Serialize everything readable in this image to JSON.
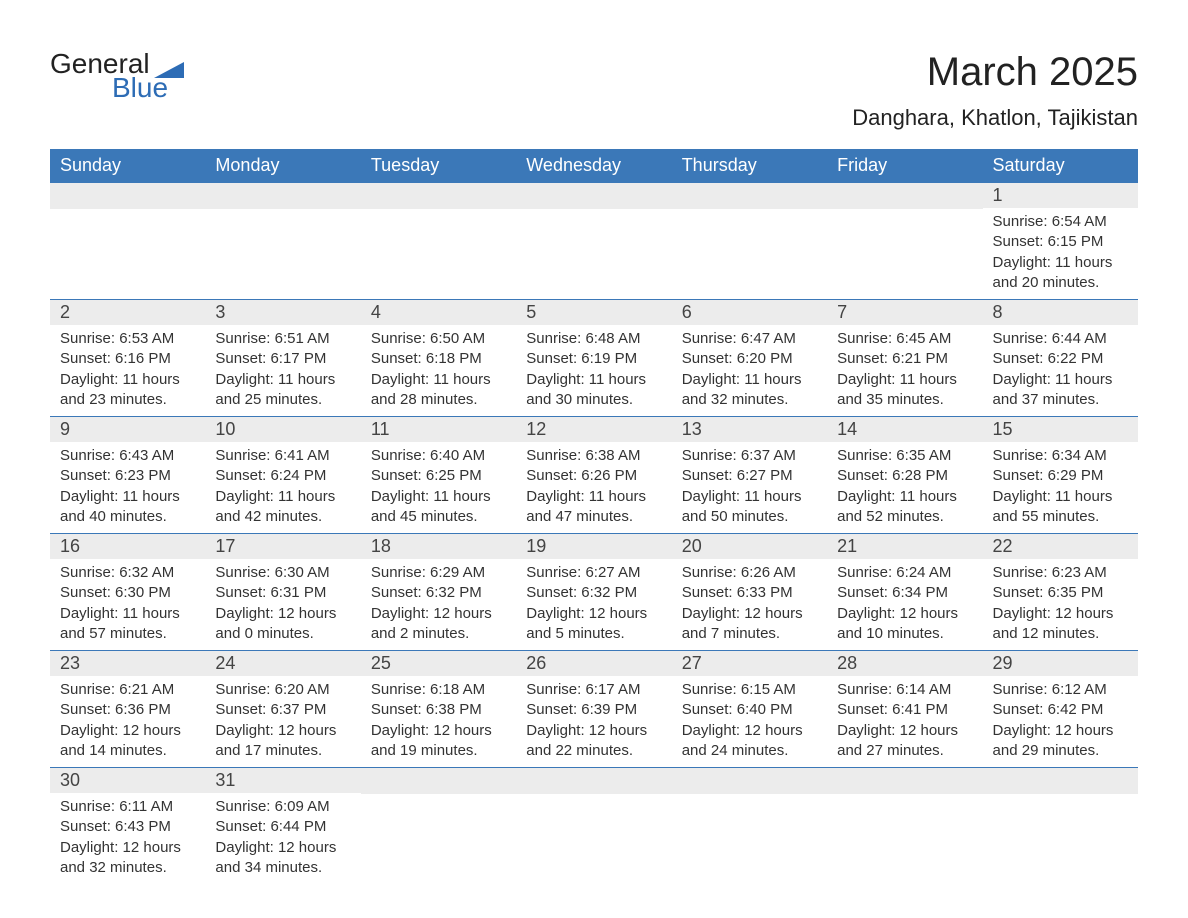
{
  "brand": {
    "text1": "General",
    "text2": "Blue",
    "accent": "#2d6cb5"
  },
  "title": "March 2025",
  "location": "Danghara, Khatlon, Tajikistan",
  "colors": {
    "header_bg": "#3b78b8",
    "header_text": "#ffffff",
    "daynum_bg": "#ececec",
    "row_border": "#3b78b8",
    "body_text": "#333333",
    "page_bg": "#ffffff"
  },
  "typography": {
    "title_pt": 40,
    "location_pt": 22,
    "header_pt": 18,
    "daynum_pt": 18,
    "body_pt": 15
  },
  "columns": [
    "Sunday",
    "Monday",
    "Tuesday",
    "Wednesday",
    "Thursday",
    "Friday",
    "Saturday"
  ],
  "weeks": [
    [
      null,
      null,
      null,
      null,
      null,
      null,
      {
        "n": "1",
        "sr": "Sunrise: 6:54 AM",
        "ss": "Sunset: 6:15 PM",
        "d1": "Daylight: 11 hours",
        "d2": "and 20 minutes."
      }
    ],
    [
      {
        "n": "2",
        "sr": "Sunrise: 6:53 AM",
        "ss": "Sunset: 6:16 PM",
        "d1": "Daylight: 11 hours",
        "d2": "and 23 minutes."
      },
      {
        "n": "3",
        "sr": "Sunrise: 6:51 AM",
        "ss": "Sunset: 6:17 PM",
        "d1": "Daylight: 11 hours",
        "d2": "and 25 minutes."
      },
      {
        "n": "4",
        "sr": "Sunrise: 6:50 AM",
        "ss": "Sunset: 6:18 PM",
        "d1": "Daylight: 11 hours",
        "d2": "and 28 minutes."
      },
      {
        "n": "5",
        "sr": "Sunrise: 6:48 AM",
        "ss": "Sunset: 6:19 PM",
        "d1": "Daylight: 11 hours",
        "d2": "and 30 minutes."
      },
      {
        "n": "6",
        "sr": "Sunrise: 6:47 AM",
        "ss": "Sunset: 6:20 PM",
        "d1": "Daylight: 11 hours",
        "d2": "and 32 minutes."
      },
      {
        "n": "7",
        "sr": "Sunrise: 6:45 AM",
        "ss": "Sunset: 6:21 PM",
        "d1": "Daylight: 11 hours",
        "d2": "and 35 minutes."
      },
      {
        "n": "8",
        "sr": "Sunrise: 6:44 AM",
        "ss": "Sunset: 6:22 PM",
        "d1": "Daylight: 11 hours",
        "d2": "and 37 minutes."
      }
    ],
    [
      {
        "n": "9",
        "sr": "Sunrise: 6:43 AM",
        "ss": "Sunset: 6:23 PM",
        "d1": "Daylight: 11 hours",
        "d2": "and 40 minutes."
      },
      {
        "n": "10",
        "sr": "Sunrise: 6:41 AM",
        "ss": "Sunset: 6:24 PM",
        "d1": "Daylight: 11 hours",
        "d2": "and 42 minutes."
      },
      {
        "n": "11",
        "sr": "Sunrise: 6:40 AM",
        "ss": "Sunset: 6:25 PM",
        "d1": "Daylight: 11 hours",
        "d2": "and 45 minutes."
      },
      {
        "n": "12",
        "sr": "Sunrise: 6:38 AM",
        "ss": "Sunset: 6:26 PM",
        "d1": "Daylight: 11 hours",
        "d2": "and 47 minutes."
      },
      {
        "n": "13",
        "sr": "Sunrise: 6:37 AM",
        "ss": "Sunset: 6:27 PM",
        "d1": "Daylight: 11 hours",
        "d2": "and 50 minutes."
      },
      {
        "n": "14",
        "sr": "Sunrise: 6:35 AM",
        "ss": "Sunset: 6:28 PM",
        "d1": "Daylight: 11 hours",
        "d2": "and 52 minutes."
      },
      {
        "n": "15",
        "sr": "Sunrise: 6:34 AM",
        "ss": "Sunset: 6:29 PM",
        "d1": "Daylight: 11 hours",
        "d2": "and 55 minutes."
      }
    ],
    [
      {
        "n": "16",
        "sr": "Sunrise: 6:32 AM",
        "ss": "Sunset: 6:30 PM",
        "d1": "Daylight: 11 hours",
        "d2": "and 57 minutes."
      },
      {
        "n": "17",
        "sr": "Sunrise: 6:30 AM",
        "ss": "Sunset: 6:31 PM",
        "d1": "Daylight: 12 hours",
        "d2": "and 0 minutes."
      },
      {
        "n": "18",
        "sr": "Sunrise: 6:29 AM",
        "ss": "Sunset: 6:32 PM",
        "d1": "Daylight: 12 hours",
        "d2": "and 2 minutes."
      },
      {
        "n": "19",
        "sr": "Sunrise: 6:27 AM",
        "ss": "Sunset: 6:32 PM",
        "d1": "Daylight: 12 hours",
        "d2": "and 5 minutes."
      },
      {
        "n": "20",
        "sr": "Sunrise: 6:26 AM",
        "ss": "Sunset: 6:33 PM",
        "d1": "Daylight: 12 hours",
        "d2": "and 7 minutes."
      },
      {
        "n": "21",
        "sr": "Sunrise: 6:24 AM",
        "ss": "Sunset: 6:34 PM",
        "d1": "Daylight: 12 hours",
        "d2": "and 10 minutes."
      },
      {
        "n": "22",
        "sr": "Sunrise: 6:23 AM",
        "ss": "Sunset: 6:35 PM",
        "d1": "Daylight: 12 hours",
        "d2": "and 12 minutes."
      }
    ],
    [
      {
        "n": "23",
        "sr": "Sunrise: 6:21 AM",
        "ss": "Sunset: 6:36 PM",
        "d1": "Daylight: 12 hours",
        "d2": "and 14 minutes."
      },
      {
        "n": "24",
        "sr": "Sunrise: 6:20 AM",
        "ss": "Sunset: 6:37 PM",
        "d1": "Daylight: 12 hours",
        "d2": "and 17 minutes."
      },
      {
        "n": "25",
        "sr": "Sunrise: 6:18 AM",
        "ss": "Sunset: 6:38 PM",
        "d1": "Daylight: 12 hours",
        "d2": "and 19 minutes."
      },
      {
        "n": "26",
        "sr": "Sunrise: 6:17 AM",
        "ss": "Sunset: 6:39 PM",
        "d1": "Daylight: 12 hours",
        "d2": "and 22 minutes."
      },
      {
        "n": "27",
        "sr": "Sunrise: 6:15 AM",
        "ss": "Sunset: 6:40 PM",
        "d1": "Daylight: 12 hours",
        "d2": "and 24 minutes."
      },
      {
        "n": "28",
        "sr": "Sunrise: 6:14 AM",
        "ss": "Sunset: 6:41 PM",
        "d1": "Daylight: 12 hours",
        "d2": "and 27 minutes."
      },
      {
        "n": "29",
        "sr": "Sunrise: 6:12 AM",
        "ss": "Sunset: 6:42 PM",
        "d1": "Daylight: 12 hours",
        "d2": "and 29 minutes."
      }
    ],
    [
      {
        "n": "30",
        "sr": "Sunrise: 6:11 AM",
        "ss": "Sunset: 6:43 PM",
        "d1": "Daylight: 12 hours",
        "d2": "and 32 minutes."
      },
      {
        "n": "31",
        "sr": "Sunrise: 6:09 AM",
        "ss": "Sunset: 6:44 PM",
        "d1": "Daylight: 12 hours",
        "d2": "and 34 minutes."
      },
      null,
      null,
      null,
      null,
      null
    ]
  ]
}
